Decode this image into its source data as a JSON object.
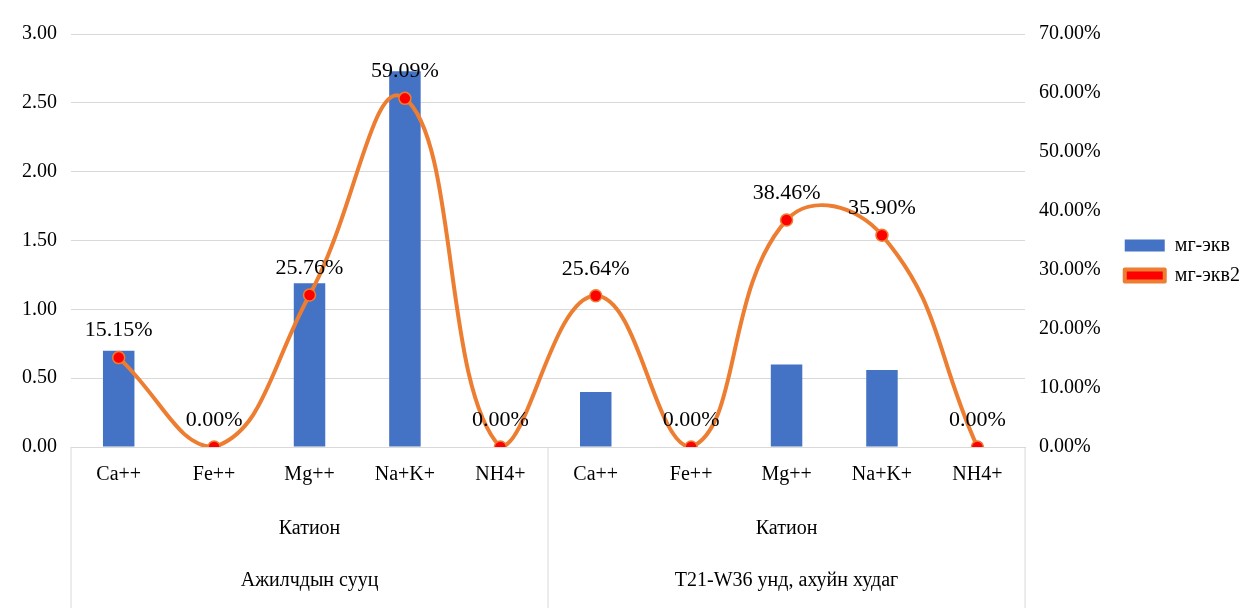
{
  "chart_data": {
    "type": "bar",
    "categories": [
      "Ca++",
      "Fe++",
      "Mg++",
      "Na+K+",
      "NH4+",
      "Ca++",
      "Fe++",
      "Mg++",
      "Na+K+",
      "NH4+"
    ],
    "series": [
      {
        "name": "мг-экв",
        "color": "#4472c4",
        "values": [
          0.7,
          0,
          1.19,
          2.73,
          0,
          0.4,
          0,
          0.6,
          0.56,
          0
        ]
      },
      {
        "name": "мг-экв2",
        "type": "line",
        "axis": "y2",
        "color": "#ed7d31",
        "marker": "circle",
        "values": [
          15.15,
          0,
          25.76,
          59.09,
          0,
          25.64,
          0,
          38.46,
          35.9,
          0
        ],
        "value_labels": [
          "15.15%",
          "0.00%",
          "25.76%",
          "59.09%",
          "0.00%",
          "25.64%",
          "0.00%",
          "38.46%",
          "35.90%",
          "0.00%"
        ]
      }
    ],
    "ylim": [
      0,
      3
    ],
    "yticks": [
      {
        "value": 0,
        "label": "0.00"
      },
      {
        "value": 0.5,
        "label": "0.50"
      },
      {
        "value": 1,
        "label": "1.00"
      },
      {
        "value": 1.5,
        "label": "1.50"
      },
      {
        "value": 2,
        "label": "2.00"
      },
      {
        "value": 2.5,
        "label": "2.50"
      },
      {
        "value": 3,
        "label": "3.00"
      }
    ],
    "y2lim": [
      0,
      70
    ],
    "y2ticks": [
      {
        "value": 0,
        "label": "0.00%"
      },
      {
        "value": 10,
        "label": "10.00%"
      },
      {
        "value": 20,
        "label": "20.00%"
      },
      {
        "value": 30,
        "label": "30.00%"
      },
      {
        "value": 40,
        "label": "40.00%"
      },
      {
        "value": 50,
        "label": "50.00%"
      },
      {
        "value": 60,
        "label": "60.00%"
      },
      {
        "value": 70,
        "label": "70.00%"
      }
    ],
    "grid": "y",
    "legend": "right",
    "annotations": [
      "Катион",
      "Катион",
      "Ажилчдын сууц",
      "T21-W36 унд, ахуйн худаг"
    ]
  }
}
